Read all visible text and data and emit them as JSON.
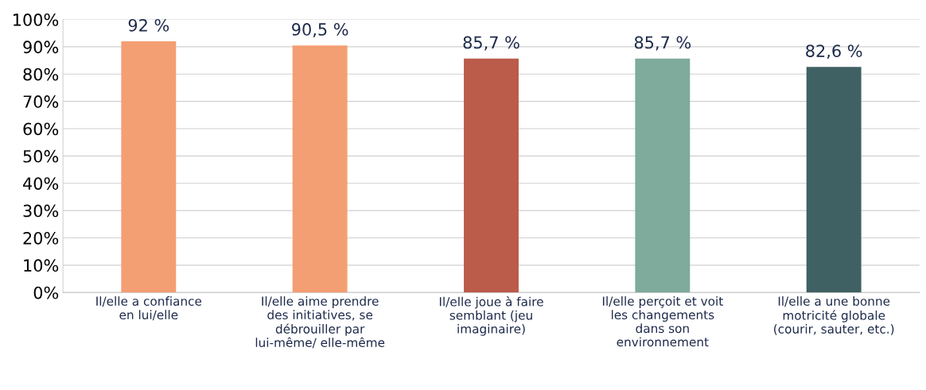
{
  "chart_data": {
    "type": "bar",
    "categories": [
      "Il/elle a confiance\nen lui/elle",
      "Il/elle aime prendre\ndes initiatives, se\ndébrouiller par\nlui-même/ elle-même",
      "Il/elle joue à faire\nsemblant (jeu\nimaginaire)",
      "Il/elle perçoit et voit\nles changements\ndans son\nenvironnement",
      "Il/elle a une bonne\nmotricité globale\n(courir, sauter, etc.)"
    ],
    "values": [
      92,
      90.5,
      85.7,
      85.7,
      82.6
    ],
    "colors": [
      "#f49e73",
      "#f49e73",
      "#bb5b4a",
      "#7eab9c",
      "#406163"
    ],
    "value_labels": [
      "92 %",
      "90,5 %",
      "85,7 %",
      "85,7 %",
      "82,6 %"
    ],
    "ylim": [
      0,
      100
    ],
    "yticks": [
      {
        "value": 0,
        "label": "0%"
      },
      {
        "value": 10,
        "label": "10%"
      },
      {
        "value": 20,
        "label": "20%"
      },
      {
        "value": 30,
        "label": "30%"
      },
      {
        "value": 40,
        "label": "40%"
      },
      {
        "value": 50,
        "label": "50%"
      },
      {
        "value": 60,
        "label": "60%"
      },
      {
        "value": 70,
        "label": "70%"
      },
      {
        "value": 80,
        "label": "80%"
      },
      {
        "value": 90,
        "label": "90%"
      },
      {
        "value": 100,
        "label": "100%"
      }
    ],
    "grid": "y"
  }
}
